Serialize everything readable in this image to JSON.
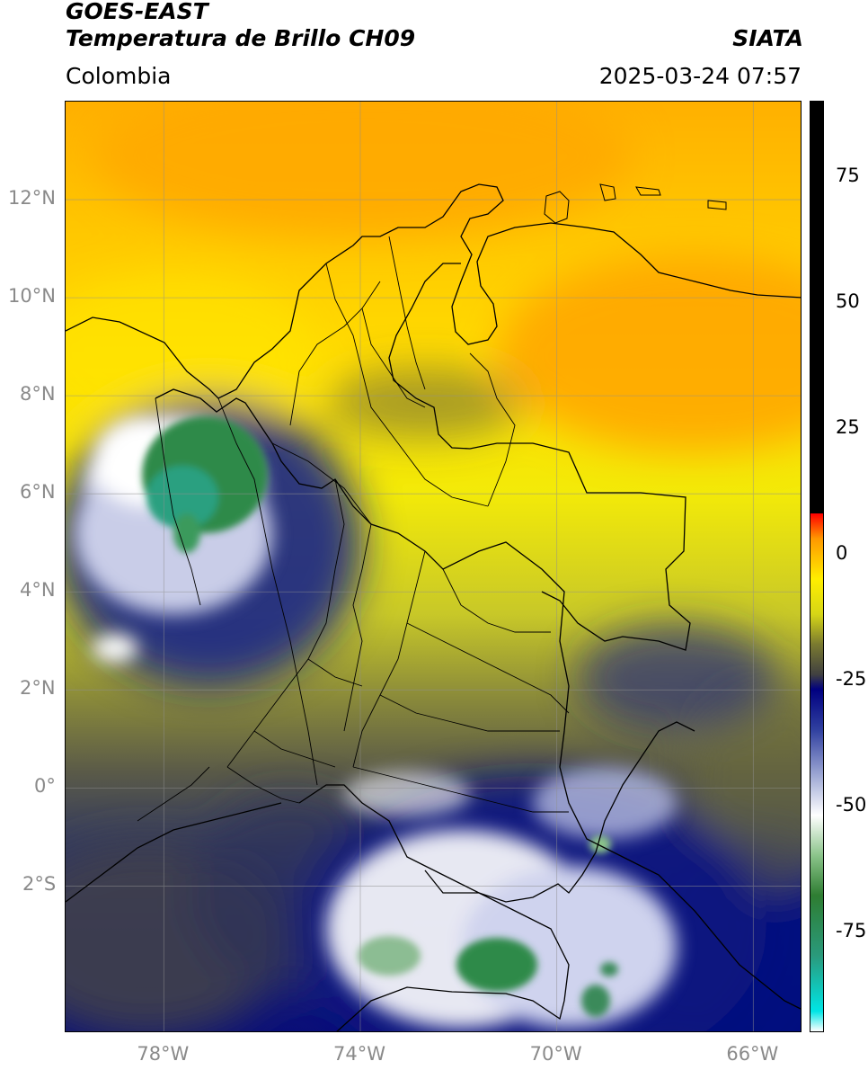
{
  "header": {
    "title_line1": "GOES-EAST",
    "title_line2": "Temperatura de Brillo CH09",
    "brand": "SIATA",
    "region": "Colombia",
    "timestamp": "2025-03-24 07:57"
  },
  "map": {
    "lon_range": [
      -80,
      -65
    ],
    "lat_range": [
      -5,
      14
    ],
    "lon_ticks": [
      {
        "value": -78,
        "label": "78°W"
      },
      {
        "value": -74,
        "label": "74°W"
      },
      {
        "value": -70,
        "label": "70°W"
      },
      {
        "value": -66,
        "label": "66°W"
      }
    ],
    "lat_ticks": [
      {
        "value": 12,
        "label": "12°N"
      },
      {
        "value": 10,
        "label": "10°N"
      },
      {
        "value": 8,
        "label": "8°N"
      },
      {
        "value": 6,
        "label": "6°N"
      },
      {
        "value": 4,
        "label": "4°N"
      },
      {
        "value": 2,
        "label": "2°N"
      },
      {
        "value": 0,
        "label": "0°"
      },
      {
        "value": -2,
        "label": "2°S"
      }
    ],
    "gridlines": true
  },
  "colorbar": {
    "range": [
      -95,
      90
    ],
    "ticks": [
      {
        "value": 75,
        "label": "75"
      },
      {
        "value": 50,
        "label": "50"
      },
      {
        "value": 25,
        "label": "25"
      },
      {
        "value": 0,
        "label": "0"
      },
      {
        "value": -25,
        "label": "-25"
      },
      {
        "value": -50,
        "label": "-50"
      },
      {
        "value": -75,
        "label": "-75"
      }
    ],
    "stops": [
      {
        "value": -95,
        "color": "#ffffff"
      },
      {
        "value": -91,
        "color": "#00e5e5"
      },
      {
        "value": -80,
        "color": "#2a9a7c"
      },
      {
        "value": -68,
        "color": "#2e7d32"
      },
      {
        "value": -60,
        "color": "#8bc48a"
      },
      {
        "value": -52,
        "color": "#ffffff"
      },
      {
        "value": -45,
        "color": "#a9b2d9"
      },
      {
        "value": -35,
        "color": "#3040a0"
      },
      {
        "value": -27,
        "color": "#000080"
      },
      {
        "value": -24,
        "color": "#404040"
      },
      {
        "value": -18,
        "color": "#7a7a30"
      },
      {
        "value": -12,
        "color": "#d6d616"
      },
      {
        "value": -5,
        "color": "#ffee00"
      },
      {
        "value": 3,
        "color": "#ff9900"
      },
      {
        "value": 8,
        "color": "#ff0000"
      },
      {
        "value": 8.1,
        "color": "#000000"
      },
      {
        "value": 90,
        "color": "#000000"
      }
    ]
  }
}
